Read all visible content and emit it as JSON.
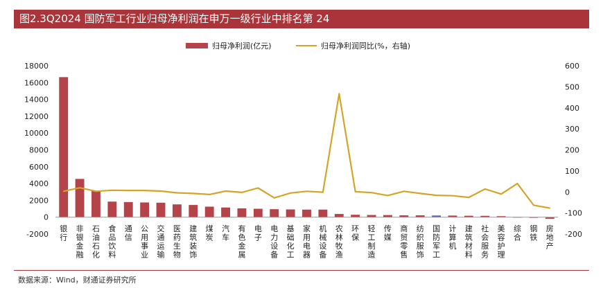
{
  "title": "图2.3Q2024 国防军工行业归母净利润在申万一级行业中排名第 24",
  "source": "数据来源：Wind，财通证券研究所",
  "colors": {
    "bar": "#b5434a",
    "highlight": "#5b6aa8",
    "line": "#d4a427",
    "title_bg": "#a9343a"
  },
  "chart_data": {
    "type": "bar",
    "categories": [
      "银行",
      "非银金融",
      "石油石化",
      "食品饮料",
      "通信",
      "公用事业",
      "交通运输",
      "医药生物",
      "建筑装饰",
      "煤炭",
      "汽车",
      "有色金属",
      "电子",
      "电力设备",
      "基础化工",
      "家用电器",
      "机械设备",
      "农林牧渔",
      "环保",
      "轻工制造",
      "传媒",
      "商贸零售",
      "纺织服饰",
      "国防军工",
      "计算机",
      "建筑材料",
      "社会服务",
      "美容护理",
      "综合",
      "钢铁",
      "房地产"
    ],
    "highlight_category": "国防军工",
    "series": [
      {
        "name": "归母净利润(亿元)",
        "type": "bar",
        "axis": "left",
        "values": [
          16650,
          4550,
          3150,
          1850,
          1800,
          1750,
          1720,
          1520,
          1450,
          1250,
          1150,
          1050,
          1000,
          950,
          920,
          900,
          900,
          380,
          290,
          260,
          250,
          220,
          220,
          200,
          190,
          170,
          160,
          120,
          30,
          -50,
          -200
        ]
      },
      {
        "name": "归母净利润同比(%，右轴)",
        "type": "line",
        "axis": "right",
        "values": [
          3,
          20,
          3,
          8,
          7,
          7,
          4,
          -4,
          -7,
          -12,
          4,
          -2,
          19,
          -28,
          -5,
          3,
          -1,
          467,
          1,
          -3,
          -17,
          3,
          -7,
          -16,
          -18,
          -26,
          14,
          -10,
          40,
          -63,
          -77
        ]
      }
    ],
    "y_left": {
      "ylim": [
        -2000,
        18000
      ],
      "ticks": [
        -2000,
        0,
        2000,
        4000,
        6000,
        8000,
        10000,
        12000,
        14000,
        16000,
        18000
      ]
    },
    "y_right": {
      "ylim": [
        -200,
        600
      ],
      "ticks": [
        -200,
        -100,
        0,
        100,
        200,
        300,
        400,
        500,
        600
      ]
    },
    "legend_position": "top-center",
    "grid": false
  }
}
